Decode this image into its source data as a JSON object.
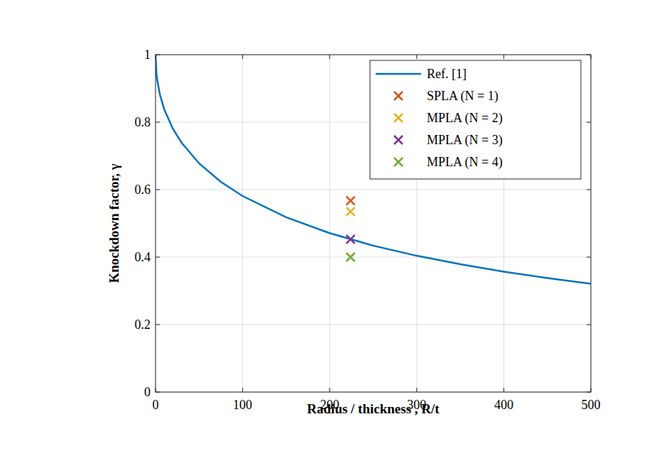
{
  "chart_data": {
    "type": "line",
    "x_label": "Radius / thickness , R/t",
    "y_label": "Knockdown factor, γ",
    "xlim": [
      0,
      500
    ],
    "ylim": [
      0,
      1
    ],
    "xticks": [
      0,
      100,
      200,
      300,
      400,
      500
    ],
    "yticks": [
      0,
      0.2,
      0.4,
      0.6,
      0.8,
      1
    ],
    "grid": true,
    "legend": "upper right",
    "series": [
      {
        "name": "Ref. [1]",
        "type": "line",
        "color": "#0072bd",
        "line_style": "solid",
        "x": [
          0,
          1,
          2,
          5,
          10,
          20,
          30,
          50,
          75,
          100,
          150,
          200,
          250,
          300,
          350,
          400,
          450,
          500
        ],
        "values": [
          1,
          0.945,
          0.924,
          0.882,
          0.838,
          0.78,
          0.739,
          0.678,
          0.623,
          0.581,
          0.518,
          0.471,
          0.434,
          0.404,
          0.379,
          0.357,
          0.338,
          0.321
        ]
      },
      {
        "name": "SPLA (N = 1)",
        "type": "scatter",
        "marker": "x",
        "color": "#d95319",
        "x": [
          224
        ],
        "values": [
          0.567
        ]
      },
      {
        "name": "MPLA (N = 2)",
        "type": "scatter",
        "marker": "x",
        "color": "#edb120",
        "x": [
          224
        ],
        "values": [
          0.535
        ]
      },
      {
        "name": "MPLA (N = 3)",
        "type": "scatter",
        "marker": "x",
        "color": "#7e2f8e",
        "x": [
          224
        ],
        "values": [
          0.453
        ]
      },
      {
        "name": "MPLA (N = 4)",
        "type": "scatter",
        "marker": "x",
        "color": "#77ac30",
        "x": [
          224
        ],
        "values": [
          0.4
        ]
      }
    ]
  }
}
